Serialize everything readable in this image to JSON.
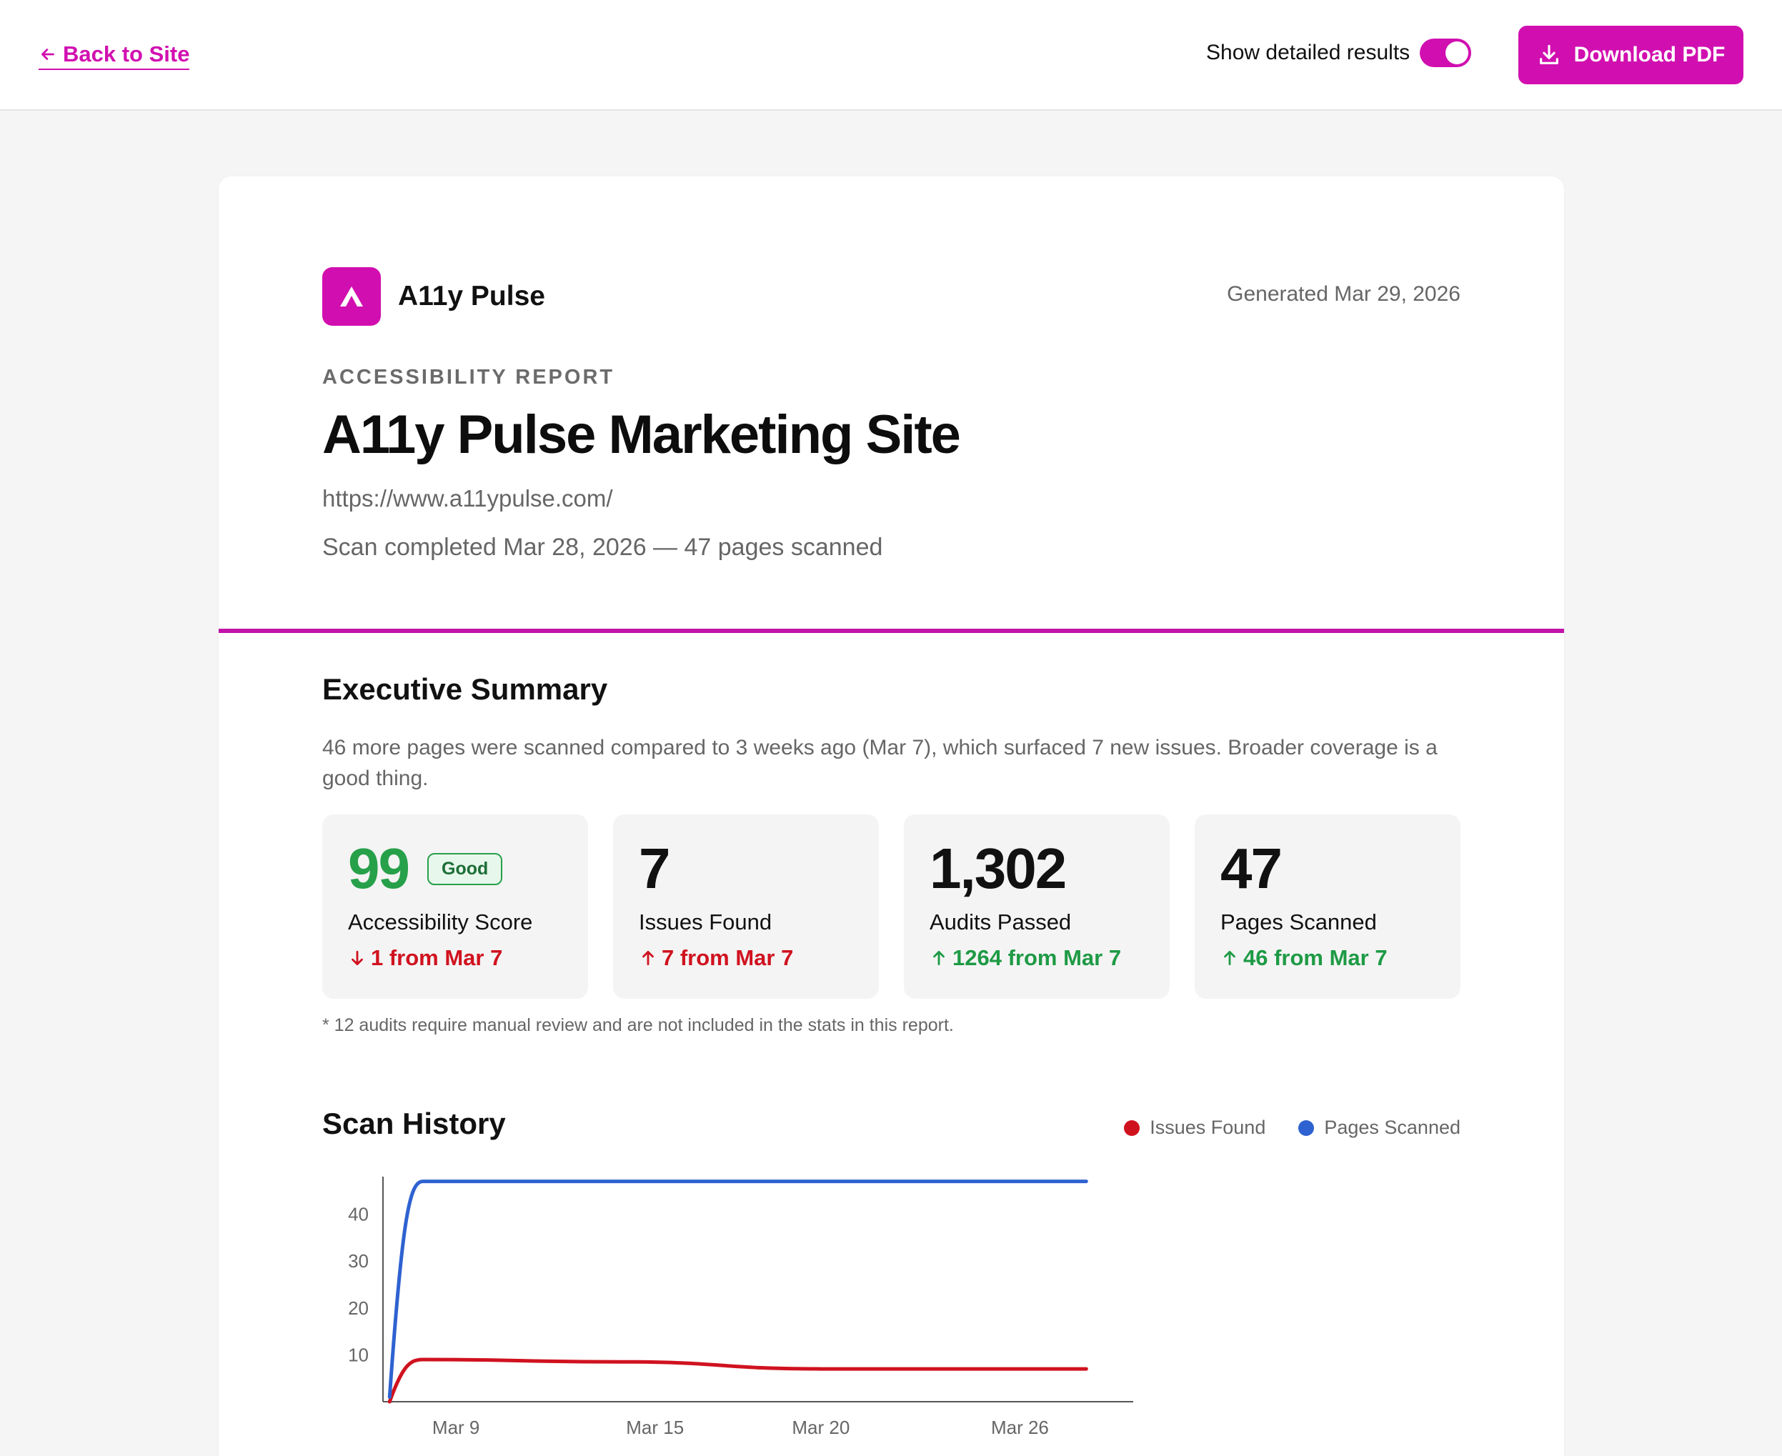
{
  "topbar": {
    "back_label": "Back to Site",
    "toggle_label": "Show detailed results",
    "toggle_on": true,
    "download_label": "Download PDF"
  },
  "report": {
    "brand_name": "A11y Pulse",
    "generated": "Generated Mar 29, 2026",
    "eyebrow": "ACCESSIBILITY REPORT",
    "title": "A11y Pulse Marketing Site",
    "url": "https://www.a11ypulse.com/",
    "scan_info": "Scan completed Mar 28, 2026 — 47 pages scanned"
  },
  "summary": {
    "title": "Executive Summary",
    "text": "46 more pages were scanned compared to 3 weeks ago (Mar 7), which surfaced 7 new issues. Broader coverage is a good thing.",
    "stats": [
      {
        "value": "99",
        "badge": "Good",
        "label": "Accessibility Score",
        "delta": "1 from Mar 7",
        "direction": "down",
        "tone": "red"
      },
      {
        "value": "7",
        "label": "Issues Found",
        "delta": "7 from Mar 7",
        "direction": "up",
        "tone": "red"
      },
      {
        "value": "1,302",
        "label": "Audits Passed",
        "delta": "1264 from Mar 7",
        "direction": "up",
        "tone": "green"
      },
      {
        "value": "47",
        "label": "Pages Scanned",
        "delta": "46 from Mar 7",
        "direction": "up",
        "tone": "green"
      }
    ],
    "footnote": "* 12 audits require manual review and are not included in the stats in this report."
  },
  "history": {
    "title": "Scan History"
  },
  "colors": {
    "accent": "#d10fb0",
    "good": "#27a04a",
    "bad": "#d0121f",
    "issues_line": "#d0121f",
    "pages_line": "#2e62d1"
  },
  "chart_data": {
    "type": "line",
    "x_tick_labels": [
      "Mar 9",
      "Mar 15",
      "Mar 20",
      "Mar 26"
    ],
    "y_tick_labels": [
      "10",
      "20",
      "30",
      "40"
    ],
    "ylim": [
      0,
      48
    ],
    "series": [
      {
        "name": "Issues Found",
        "color": "#d0121f",
        "points": [
          [
            7,
            0
          ],
          [
            8,
            9
          ],
          [
            14,
            8.5
          ],
          [
            20,
            7
          ],
          [
            28,
            7
          ]
        ]
      },
      {
        "name": "Pages Scanned",
        "color": "#2e62d1",
        "points": [
          [
            7,
            1
          ],
          [
            8,
            47
          ],
          [
            14,
            47
          ],
          [
            20,
            47
          ],
          [
            28,
            47
          ]
        ]
      }
    ],
    "x_ticks_days": [
      9,
      15,
      20,
      26
    ],
    "xlim": [
      6.8,
      29.2
    ],
    "legend_position": "top-right"
  }
}
